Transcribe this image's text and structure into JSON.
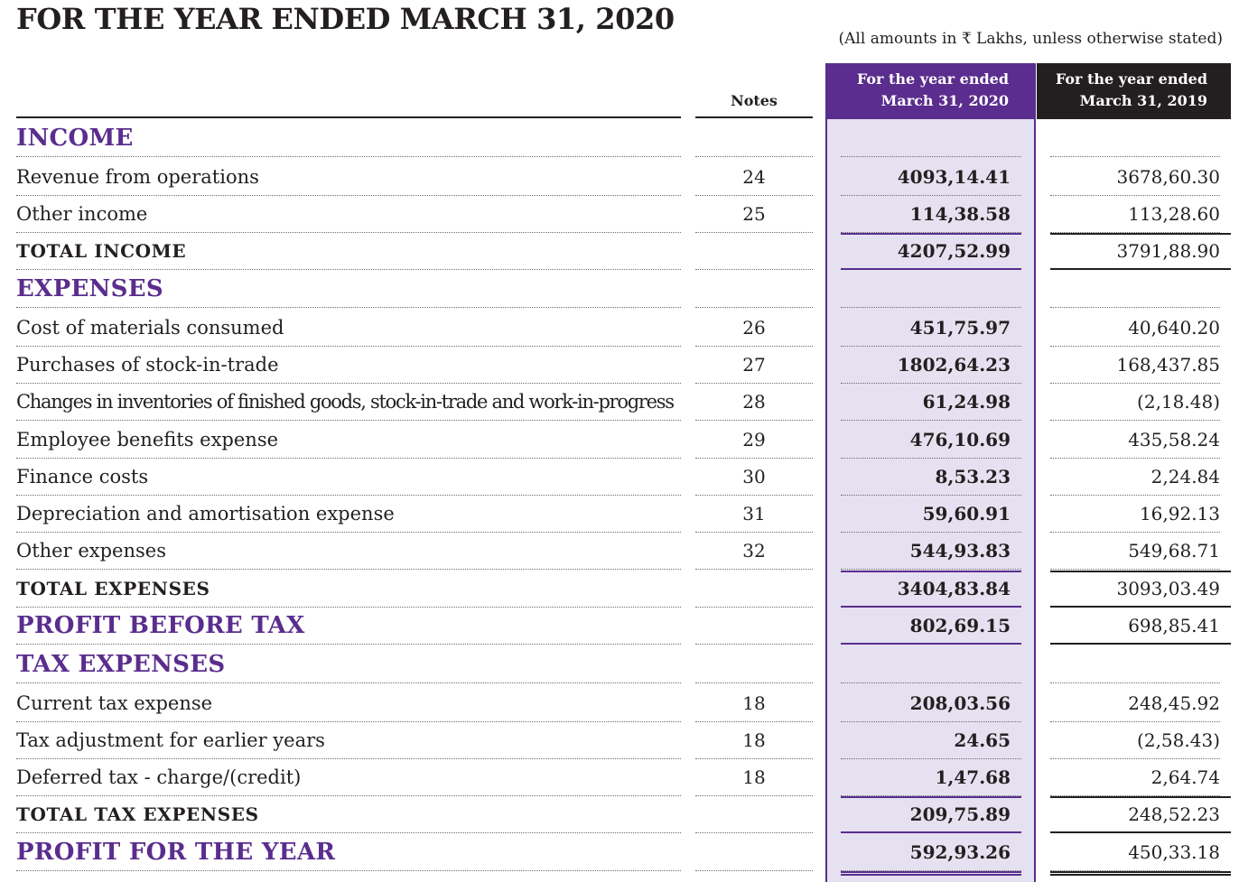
{
  "title": "FOR THE YEAR ENDED MARCH 31, 2020",
  "units_note": "(All amounts in ₹ Lakhs, unless otherwise stated)",
  "columns": {
    "notes": "Notes",
    "current": [
      "For the year ended",
      "March 31, 2020"
    ],
    "previous": [
      "For the year ended",
      "March 31, 2019"
    ]
  },
  "colors": {
    "accent": "#5a2d8e",
    "shade": "#e5e1f0",
    "dark": "#231f20"
  },
  "rows": [
    {
      "label": "INCOME",
      "type": "section",
      "note": "",
      "fy2020": "",
      "fy2019": ""
    },
    {
      "label": "Revenue from operations",
      "type": "item",
      "note": "24",
      "fy2020": "4093,14.41",
      "fy2019": "3678,60.30"
    },
    {
      "label": "Other income",
      "type": "item",
      "note": "25",
      "fy2020": "114,38.58",
      "fy2019": "113,28.60"
    },
    {
      "label": "TOTAL INCOME",
      "type": "total",
      "note": "",
      "fy2020": "4207,52.99",
      "fy2019": "3791,88.90"
    },
    {
      "label": "EXPENSES",
      "type": "section",
      "note": "",
      "fy2020": "",
      "fy2019": ""
    },
    {
      "label": "Cost of materials consumed",
      "type": "item",
      "note": "26",
      "fy2020": "451,75.97",
      "fy2019": "40,640.20"
    },
    {
      "label": "Purchases of stock-in-trade",
      "type": "item",
      "note": "27",
      "fy2020": "1802,64.23",
      "fy2019": "168,437.85"
    },
    {
      "label": "Changes in inventories of finished goods, stock-in-trade and work-in-progress",
      "type": "item",
      "note": "28",
      "fy2020": "61,24.98",
      "fy2019": "(2,18.48)"
    },
    {
      "label": "Employee benefits expense",
      "type": "item",
      "note": "29",
      "fy2020": "476,10.69",
      "fy2019": "435,58.24"
    },
    {
      "label": "Finance costs",
      "type": "item",
      "note": "30",
      "fy2020": "8,53.23",
      "fy2019": "2,24.84"
    },
    {
      "label": "Depreciation and amortisation expense",
      "type": "item",
      "note": "31",
      "fy2020": "59,60.91",
      "fy2019": "16,92.13"
    },
    {
      "label": "Other expenses",
      "type": "item",
      "note": "32",
      "fy2020": "544,93.83",
      "fy2019": "549,68.71"
    },
    {
      "label": "TOTAL EXPENSES",
      "type": "total",
      "note": "",
      "fy2020": "3404,83.84",
      "fy2019": "3093,03.49"
    },
    {
      "label": "PROFIT BEFORE TAX",
      "type": "section",
      "note": "",
      "fy2020": "802,69.15",
      "fy2019": "698,85.41"
    },
    {
      "label": "TAX EXPENSES",
      "type": "section",
      "note": "",
      "fy2020": "",
      "fy2019": ""
    },
    {
      "label": "Current tax expense",
      "type": "item",
      "note": "18",
      "fy2020": "208,03.56",
      "fy2019": "248,45.92"
    },
    {
      "label": "Tax adjustment for earlier years",
      "type": "item",
      "note": "18",
      "fy2020": "24.65",
      "fy2019": "(2,58.43)"
    },
    {
      "label": "Deferred tax - charge/(credit)",
      "type": "item",
      "note": "18",
      "fy2020": "1,47.68",
      "fy2019": "2,64.74"
    },
    {
      "label": "TOTAL TAX EXPENSES",
      "type": "total",
      "note": "",
      "fy2020": "209,75.89",
      "fy2019": "248,52.23"
    },
    {
      "label": "PROFIT FOR THE YEAR",
      "type": "section",
      "note": "",
      "fy2020": "592,93.26",
      "fy2019": "450,33.18"
    }
  ]
}
